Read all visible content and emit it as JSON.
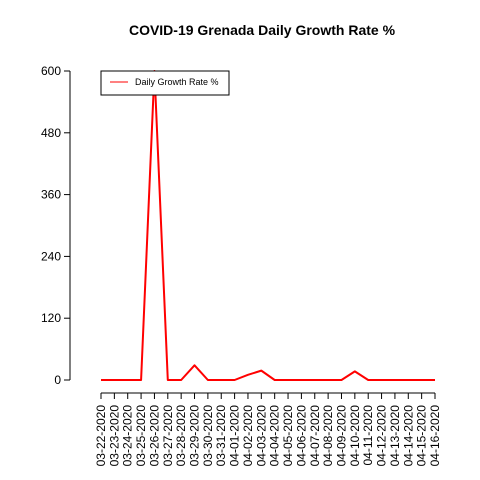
{
  "chart_data": {
    "type": "line",
    "title": "COVID-19 Grenada Daily Growth Rate %",
    "xlabel": "",
    "ylabel": "",
    "categories": [
      "03-22-2020",
      "03-23-2020",
      "03-24-2020",
      "03-25-2020",
      "03-26-2020",
      "03-27-2020",
      "03-28-2020",
      "03-29-2020",
      "03-30-2020",
      "03-31-2020",
      "04-01-2020",
      "04-02-2020",
      "04-03-2020",
      "04-04-2020",
      "04-05-2020",
      "04-06-2020",
      "04-07-2020",
      "04-08-2020",
      "04-09-2020",
      "04-10-2020",
      "04-11-2020",
      "04-12-2020",
      "04-13-2020",
      "04-14-2020",
      "04-15-2020",
      "04-16-2020"
    ],
    "series": [
      {
        "name": "Daily Growth Rate %",
        "color": "#ff0000",
        "values": [
          0,
          0,
          0,
          0,
          600,
          0,
          0,
          28.6,
          0,
          0,
          0,
          10,
          18.2,
          0,
          0,
          0,
          0,
          0,
          0,
          16.7,
          0,
          0,
          0,
          0,
          0,
          0
        ]
      }
    ],
    "yticks": [
      0,
      120,
      240,
      360,
      480,
      600
    ],
    "ylim": [
      0,
      600
    ],
    "grid": false,
    "legend_position": "top-left"
  }
}
